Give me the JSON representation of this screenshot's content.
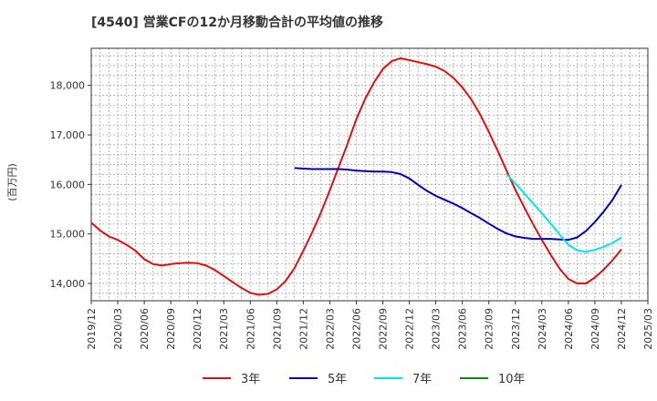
{
  "chart_data": {
    "type": "line",
    "title": "[4540]  営業CFの12か月移動合計の平均値の推移",
    "ylabel": "(百万円)",
    "xlabel": "",
    "ylim": [
      13650,
      18750
    ],
    "yticks": [
      14000,
      15000,
      16000,
      17000,
      18000
    ],
    "ytick_labels": [
      "14,000",
      "15,000",
      "16,000",
      "17,000",
      "18,000"
    ],
    "xlim": [
      "2019-12",
      "2025-03"
    ],
    "xtick_labels": [
      "2019/12",
      "2020/03",
      "2020/06",
      "2020/09",
      "2020/12",
      "2021/03",
      "2021/06",
      "2021/09",
      "2021/12",
      "2022/03",
      "2022/06",
      "2022/09",
      "2022/12",
      "2023/03",
      "2023/06",
      "2023/09",
      "2023/12",
      "2024/03",
      "2024/06",
      "2024/09",
      "2024/12",
      "2025/03"
    ],
    "grid": true,
    "legend_position": "bottom",
    "series": [
      {
        "name": "3年",
        "color": "#dd1111",
        "x": [
          "2019-12",
          "2020-01",
          "2020-02",
          "2020-03",
          "2020-04",
          "2020-05",
          "2020-06",
          "2020-07",
          "2020-08",
          "2020-09",
          "2020-10",
          "2020-11",
          "2020-12",
          "2021-01",
          "2021-02",
          "2021-03",
          "2021-04",
          "2021-05",
          "2021-06",
          "2021-07",
          "2021-08",
          "2021-09",
          "2021-10",
          "2021-11",
          "2021-12",
          "2022-01",
          "2022-02",
          "2022-03",
          "2022-04",
          "2022-05",
          "2022-06",
          "2022-07",
          "2022-08",
          "2022-09",
          "2022-10",
          "2022-11",
          "2022-12",
          "2023-01",
          "2023-02",
          "2023-03",
          "2023-04",
          "2023-05",
          "2023-06",
          "2023-07",
          "2023-08",
          "2023-09",
          "2023-10",
          "2023-11",
          "2023-12",
          "2024-01",
          "2024-02",
          "2024-03",
          "2024-04",
          "2024-05",
          "2024-06",
          "2024-07",
          "2024-08",
          "2024-09",
          "2024-10",
          "2024-11",
          "2024-12"
        ],
        "values": [
          15230,
          15070,
          14950,
          14880,
          14780,
          14660,
          14490,
          14390,
          14360,
          14390,
          14410,
          14420,
          14410,
          14360,
          14270,
          14150,
          14030,
          13910,
          13810,
          13770,
          13790,
          13880,
          14050,
          14310,
          14660,
          15030,
          15430,
          15880,
          16350,
          16820,
          17320,
          17730,
          18060,
          18330,
          18490,
          18550,
          18510,
          18470,
          18430,
          18380,
          18290,
          18150,
          17960,
          17720,
          17420,
          17060,
          16680,
          16280,
          15890,
          15540,
          15200,
          14880,
          14580,
          14300,
          14090,
          14000,
          14000,
          14120,
          14280,
          14470,
          14690
        ]
      },
      {
        "name": "5年",
        "color": "#0000bb",
        "x": [
          "2021-11",
          "2021-12",
          "2022-01",
          "2022-02",
          "2022-03",
          "2022-04",
          "2022-05",
          "2022-06",
          "2022-07",
          "2022-08",
          "2022-09",
          "2022-10",
          "2022-11",
          "2022-12",
          "2023-01",
          "2023-02",
          "2023-03",
          "2023-04",
          "2023-05",
          "2023-06",
          "2023-07",
          "2023-08",
          "2023-09",
          "2023-10",
          "2023-11",
          "2023-12",
          "2024-01",
          "2024-02",
          "2024-03",
          "2024-04",
          "2024-05",
          "2024-06",
          "2024-07",
          "2024-08",
          "2024-09",
          "2024-10",
          "2024-11",
          "2024-12"
        ],
        "values": [
          16330,
          16320,
          16310,
          16310,
          16310,
          16310,
          16300,
          16280,
          16270,
          16260,
          16260,
          16250,
          16210,
          16120,
          15990,
          15870,
          15770,
          15690,
          15610,
          15520,
          15420,
          15320,
          15210,
          15100,
          15010,
          14950,
          14920,
          14900,
          14900,
          14900,
          14890,
          14880,
          14930,
          15060,
          15240,
          15450,
          15690,
          15990
        ]
      },
      {
        "name": "7年",
        "color": "#00e5ee",
        "x": [
          "2023-11",
          "2023-12",
          "2024-01",
          "2024-02",
          "2024-03",
          "2024-04",
          "2024-05",
          "2024-06",
          "2024-07",
          "2024-08",
          "2024-09",
          "2024-10",
          "2024-11",
          "2024-12"
        ],
        "values": [
          16210,
          16020,
          15820,
          15620,
          15420,
          15210,
          14990,
          14780,
          14670,
          14640,
          14680,
          14740,
          14820,
          14930
        ]
      },
      {
        "name": "10年",
        "color": "#118811",
        "x": [],
        "values": []
      }
    ]
  }
}
